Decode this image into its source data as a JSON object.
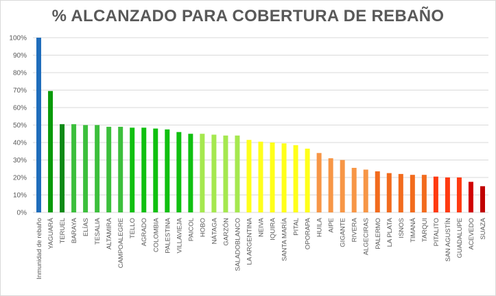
{
  "chart_data": {
    "type": "bar",
    "title": "% ALCANZADO PARA COBERTURA DE REBAÑO",
    "xlabel": "",
    "ylabel": "",
    "ylim": [
      0,
      100
    ],
    "yticks": [
      "0%",
      "10%",
      "20%",
      "30%",
      "40%",
      "50%",
      "60%",
      "70%",
      "80%",
      "90%",
      "100%"
    ],
    "grid": true,
    "legend": "none",
    "categories": [
      "Inmunidad de rebaño",
      "YAGUARÁ",
      "TERUEL",
      "BARAYA",
      "ELÍAS",
      "TESALIA",
      "ALTAMIRA",
      "CAMPOALEGRE",
      "TELLO",
      "AGRADO",
      "COLOMBIA",
      "PALESTINA",
      "VILLAVIEJA",
      "PAICOL",
      "HOBO",
      "NÁTAGA",
      "GARZÓN",
      "SALADOBLANCO",
      "LA ARGENTINA",
      "NEIVA",
      "IQUIRA",
      "SANTA MARÍA",
      "PITAL",
      "OPORAPA",
      "HUILA",
      "AIPE",
      "GIGANTE",
      "RIVERA",
      "ALGECIRAS",
      "PALERMO",
      "LA PLATA",
      "ISNOS",
      "TIMANÁ",
      "TARQUI",
      "PITALITO",
      "SAN AGUSTÍN",
      "GUADALUPE",
      "ACEVEDO",
      "SUAZA"
    ],
    "values": [
      100,
      69.5,
      50.5,
      50.5,
      50,
      50,
      49,
      49,
      48.5,
      48.5,
      48,
      47.5,
      46,
      45,
      45,
      44.5,
      44,
      44,
      41.5,
      40.5,
      40,
      39.5,
      38.5,
      36.5,
      34,
      31,
      30,
      25.5,
      24.5,
      23.5,
      22.5,
      22,
      21.5,
      21.5,
      20.5,
      20,
      20,
      17.5,
      15
    ],
    "colors": [
      "#1f6dbb",
      "#0a9a0a",
      "#0e8a16",
      "#3cbf3c",
      "#3cbf3c",
      "#3cbf3c",
      "#3cbf3c",
      "#3cbf3c",
      "#10c010",
      "#10c010",
      "#10c010",
      "#10c010",
      "#10c010",
      "#10c010",
      "#a5e84f",
      "#a5e84f",
      "#a5e84f",
      "#a5e84f",
      "#ffff1a",
      "#ffff1a",
      "#ffff1a",
      "#ffff1a",
      "#ffff1a",
      "#ffff1a",
      "#f79646",
      "#f79646",
      "#f79646",
      "#f79646",
      "#f79646",
      "#f26b1d",
      "#f26b1d",
      "#f26b1d",
      "#f26b1d",
      "#f26b1d",
      "#ff3a10",
      "#ff3a10",
      "#ff3a10",
      "#d00000",
      "#c00000"
    ]
  }
}
